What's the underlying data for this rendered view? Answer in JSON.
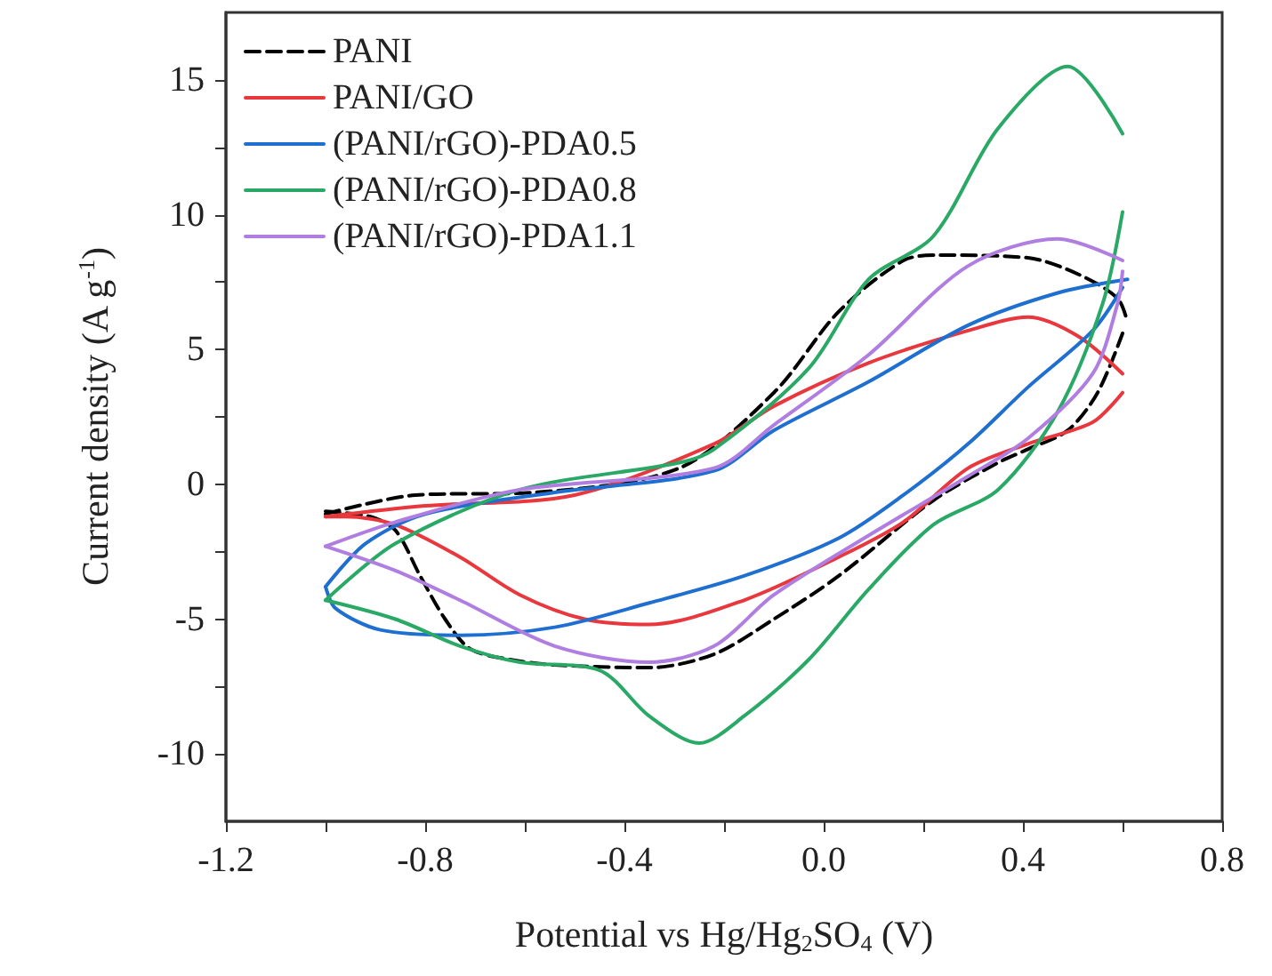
{
  "chart_data": {
    "type": "line",
    "xlabel": "Potential vs Hg/Hg$_{2}$SO$_{4}$ (V)",
    "ylabel": "Current density (A g$^{-1}$)",
    "xlim": [
      -1.2,
      0.8
    ],
    "xticks": [
      -1.2,
      {
        "value": -1.0,
        "label": null
      },
      -0.8,
      {
        "value": -0.6,
        "label": null
      },
      -0.4,
      {
        "value": -0.2,
        "label": null
      },
      {
        "value": 0.0,
        "label": "0.0"
      },
      {
        "value": 0.2,
        "label": null
      },
      0.4,
      {
        "value": 0.6,
        "label": null
      },
      0.8
    ],
    "ylim": [
      -12.5,
      17.5
    ],
    "yticks": [
      -10,
      {
        "value": -7.5,
        "label": null
      },
      -5,
      {
        "value": -2.5,
        "label": null
      },
      0,
      {
        "value": 2.5,
        "label": null
      },
      5,
      {
        "value": 7.5,
        "label": null
      },
      10,
      {
        "value": 12.5,
        "label": null
      },
      15
    ],
    "grid": false,
    "legend": "top left",
    "marker": "none",
    "series": [
      {
        "name": "PANI",
        "color": "#000000",
        "line_style": "dashed",
        "x": [
          -1.0,
          -0.82,
          -0.58,
          -0.29,
          -0.1,
          0.03,
          0.16,
          0.23,
          0.41,
          0.51,
          0.59,
          0.61
        ],
        "values": [
          -1.1,
          -0.4,
          -0.3,
          0.6,
          3.4,
          6.4,
          8.3,
          8.5,
          8.4,
          7.8,
          6.9,
          6.0
        ]
      },
      {
        "color": "#000000",
        "line_style": "dashed",
        "x": [
          -1.0,
          -0.91,
          -0.86,
          -0.81,
          -0.76,
          -0.71,
          -0.63,
          -0.54,
          -0.35,
          -0.22,
          -0.1,
          0.03,
          0.22,
          0.35,
          0.41,
          0.49,
          0.55,
          0.6
        ],
        "values": [
          -1.0,
          -1.2,
          -1.7,
          -3.4,
          -5.0,
          -6.1,
          -6.5,
          -6.7,
          -6.8,
          -6.3,
          -5.0,
          -3.4,
          -0.6,
          0.8,
          1.3,
          2.0,
          3.4,
          5.6
        ]
      },
      {
        "name": "PANI/GO",
        "color": "#e8383d",
        "line_style": "solid",
        "x": [
          -1.0,
          -0.8,
          -0.5,
          -0.22,
          -0.1,
          0.09,
          0.29,
          0.41,
          0.51,
          0.6
        ],
        "values": [
          -1.2,
          -0.8,
          -0.4,
          1.5,
          2.9,
          4.5,
          5.7,
          6.2,
          5.5,
          4.1
        ]
      },
      {
        "color": "#e8383d",
        "line_style": "solid",
        "x": [
          -1.0,
          -0.96,
          -0.86,
          -0.73,
          -0.61,
          -0.48,
          -0.35,
          -0.16,
          0.03,
          0.16,
          0.29,
          0.41,
          0.54,
          0.6
        ],
        "values": [
          -1.2,
          -1.2,
          -1.5,
          -2.7,
          -4.1,
          -5.0,
          -5.2,
          -4.3,
          -2.7,
          -1.4,
          0.6,
          1.5,
          2.3,
          3.4
        ]
      },
      {
        "name": "(PANI/rGO)-PDA0.5",
        "color": "#1f6fd0",
        "line_style": "solid",
        "x": [
          -1.0,
          -0.92,
          -0.8,
          -0.54,
          -0.22,
          -0.1,
          0.09,
          0.29,
          0.47,
          0.61
        ],
        "values": [
          -3.8,
          -2.2,
          -1.1,
          -0.3,
          0.5,
          2.0,
          3.8,
          5.9,
          7.1,
          7.6
        ]
      },
      {
        "color": "#1f6fd0",
        "line_style": "solid",
        "x": [
          -1.0,
          -0.98,
          -0.89,
          -0.73,
          -0.54,
          -0.35,
          -0.16,
          0.03,
          0.16,
          0.29,
          0.41,
          0.54,
          0.6
        ],
        "values": [
          -3.8,
          -4.6,
          -5.4,
          -5.6,
          -5.3,
          -4.4,
          -3.4,
          -2.0,
          -0.4,
          1.5,
          3.6,
          5.7,
          7.3
        ]
      },
      {
        "name": "(PANI/rGO)-PDA0.8",
        "color": "#2aa866",
        "line_style": "solid",
        "x": [
          -1.0,
          -0.86,
          -0.61,
          -0.29,
          -0.22,
          -0.03,
          0.09,
          0.22,
          0.35,
          0.49,
          0.6
        ],
        "values": [
          -4.3,
          -2.2,
          -0.2,
          0.8,
          1.3,
          4.3,
          7.6,
          9.2,
          13.2,
          15.5,
          13.0
        ]
      },
      {
        "color": "#2aa866",
        "line_style": "solid",
        "x": [
          -1.0,
          -0.86,
          -0.73,
          -0.61,
          -0.45,
          -0.35,
          -0.25,
          -0.16,
          -0.03,
          0.09,
          0.22,
          0.35,
          0.47,
          0.56,
          0.6
        ],
        "values": [
          -4.3,
          -5.0,
          -6.0,
          -6.6,
          -6.9,
          -8.6,
          -9.6,
          -8.6,
          -6.5,
          -3.9,
          -1.5,
          -0.2,
          2.7,
          6.7,
          10.1
        ]
      },
      {
        "name": "(PANI/rGO)-PDA1.1",
        "color": "#b07ee0",
        "line_style": "solid",
        "x": [
          -1.0,
          -0.86,
          -0.61,
          -0.22,
          -0.1,
          0.09,
          0.29,
          0.47,
          0.6
        ],
        "values": [
          -2.3,
          -1.4,
          -0.2,
          0.6,
          2.2,
          4.8,
          8.1,
          9.1,
          8.3
        ]
      },
      {
        "color": "#b07ee0",
        "line_style": "solid",
        "x": [
          -1.0,
          -0.86,
          -0.73,
          -0.54,
          -0.35,
          -0.22,
          -0.1,
          0.09,
          0.29,
          0.41,
          0.54,
          0.59,
          0.6
        ],
        "values": [
          -2.3,
          -3.2,
          -4.3,
          -6.0,
          -6.6,
          -6.0,
          -4.1,
          -1.9,
          0.3,
          1.7,
          4.1,
          6.7,
          7.9
        ]
      }
    ]
  }
}
